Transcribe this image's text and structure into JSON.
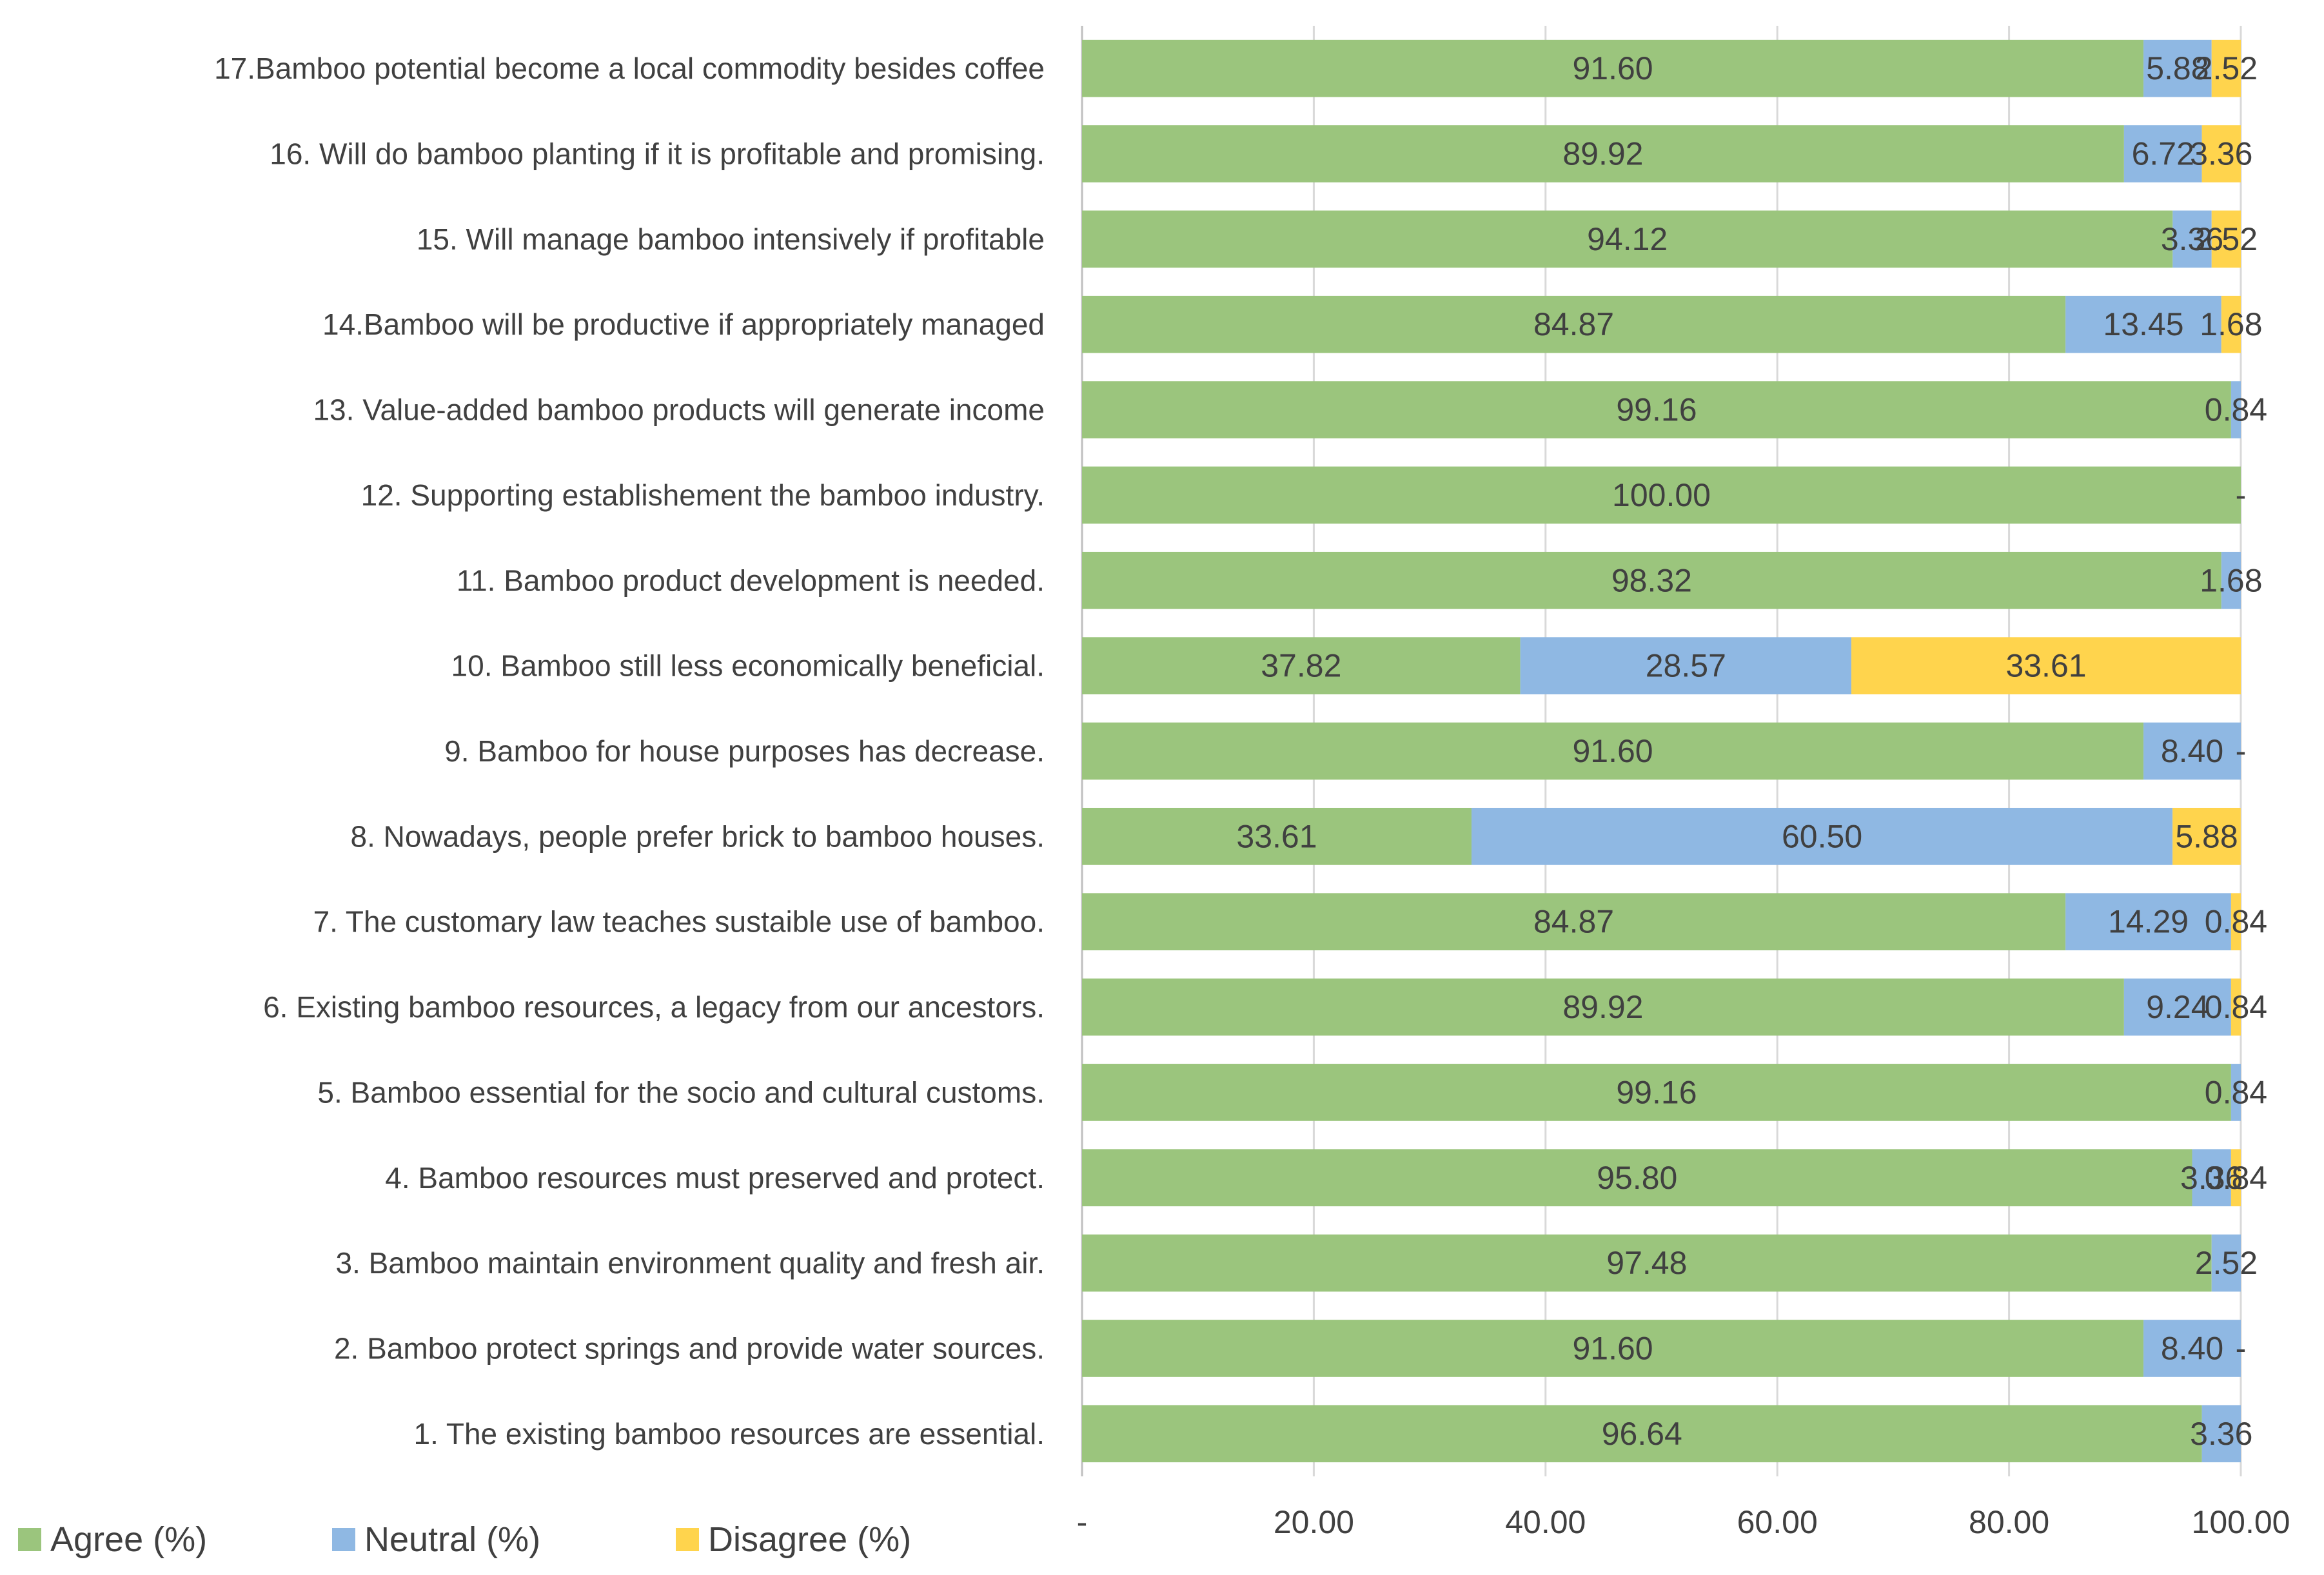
{
  "chart_data": {
    "type": "bar",
    "orientation": "horizontal",
    "stacked": true,
    "categories": [
      "1. The existing bamboo resources are essential.",
      "2. Bamboo protect springs and provide water sources.",
      "3. Bamboo maintain environment quality and fresh air.",
      "4. Bamboo resources must preserved and protect.",
      "5. Bamboo essential for the socio and cultural customs.",
      "6. Existing bamboo resources, a legacy from our ancestors.",
      "7. The customary law teaches sustaible use of bamboo.",
      "8. Nowadays, people prefer brick to bamboo houses.",
      "9. Bamboo for house purposes has decrease.",
      "10. Bamboo still less economically beneficial.",
      "11. Bamboo product development is needed.",
      "12. Supporting establishement the bamboo industry.",
      "13. Value-added bamboo products will generate income",
      "14.Bamboo will be productive if appropriately managed",
      "15. Will manage bamboo intensively if profitable",
      "16. Will do bamboo planting if it is profitable and promising.",
      "17.Bamboo potential become a local commodity besides coffee"
    ],
    "series": [
      {
        "name": "Agree (%)",
        "color": "#9bc57d",
        "values": [
          96.64,
          91.6,
          97.48,
          95.8,
          99.16,
          89.92,
          84.87,
          33.61,
          91.6,
          37.82,
          98.32,
          100.0,
          99.16,
          84.87,
          94.12,
          89.92,
          91.6
        ],
        "labels": [
          "96.64",
          "91.60",
          "97.48",
          "95.80",
          "99.16",
          "89.92",
          "84.87",
          "33.61",
          "91.60",
          "37.82",
          "98.32",
          "100.00",
          "99.16",
          "84.87",
          "94.12",
          "89.92",
          "91.60"
        ]
      },
      {
        "name": "Neutral (%)",
        "color": "#8fb8e3",
        "values": [
          3.36,
          8.4,
          2.52,
          3.36,
          0.84,
          9.24,
          14.29,
          60.5,
          8.4,
          28.57,
          1.68,
          0,
          0.84,
          13.45,
          3.36,
          6.72,
          5.88
        ],
        "labels": [
          "3.36",
          "8.40",
          "2.52",
          "3.36",
          "0.84",
          "9.24",
          "14.29",
          "60.50",
          "8.40",
          "28.57",
          "1.68",
          "",
          "0.84",
          "13.45",
          "3.36",
          "6.72",
          "5.88"
        ]
      },
      {
        "name": "Disagree (%)",
        "color": "#ffd44d",
        "values": [
          0,
          0,
          0,
          0.84,
          0,
          0.84,
          0.84,
          5.88,
          0,
          33.61,
          0,
          0,
          0,
          1.68,
          2.52,
          3.36,
          2.52
        ],
        "labels": [
          "",
          "-",
          "",
          "0.84",
          "",
          "0.84",
          "0.84",
          "5.88",
          "-",
          "33.61",
          "",
          "-",
          "",
          "1.68",
          "2.52",
          "3.36",
          "2.52"
        ]
      }
    ],
    "xlim": [
      0,
      100
    ],
    "xticks": [
      0,
      20,
      40,
      60,
      80,
      100
    ],
    "xtick_labels": [
      "-",
      "20.00",
      "40.00",
      "60.00",
      "80.00",
      "100.00"
    ],
    "grid": true,
    "legend": "bottom-left",
    "title": "",
    "xlabel": "",
    "ylabel": ""
  }
}
